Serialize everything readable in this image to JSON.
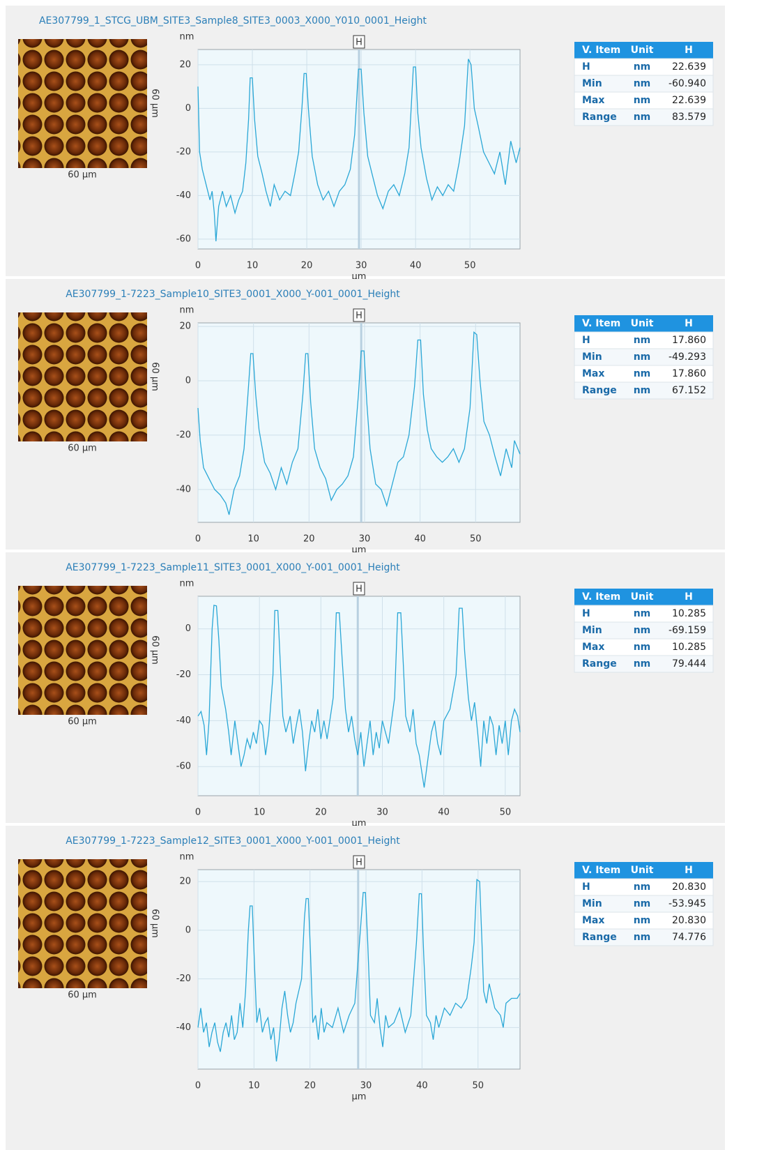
{
  "panels": [
    {
      "image": {
        "x_label": "60 µm",
        "y_label": "60 µm"
      },
      "chart_data": {
        "type": "line",
        "title": "AE307799_1_STCG_UBM_SITE3_Sample8_SITE3_0003_X000_Y010_0001_Height",
        "y_unit": "nm",
        "x_label": "µm",
        "marker_label": "H",
        "cursor_x": 29.6,
        "grid": true,
        "xlim": [
          0,
          59.2
        ],
        "ylim": [
          -64.5,
          27
        ],
        "xticks": [
          0,
          10,
          20,
          30,
          40,
          50
        ],
        "yticks": [
          -60,
          -40,
          -20,
          0,
          20
        ],
        "x": [
          0,
          0.3,
          0.8,
          1.5,
          2.2,
          2.6,
          3.0,
          3.3,
          3.8,
          4.5,
          5.2,
          6,
          6.8,
          7.5,
          8.2,
          8.8,
          9.3,
          9.6,
          10.0,
          10.4,
          11,
          11.8,
          12.5,
          13.3,
          14,
          15,
          16,
          17,
          17.8,
          18.5,
          19.1,
          19.5,
          19.9,
          20.3,
          21,
          22,
          23,
          24,
          25,
          26,
          27,
          28,
          28.8,
          29.5,
          30,
          30.5,
          31.2,
          32,
          33,
          34,
          35,
          36,
          37,
          38,
          38.8,
          39.6,
          40.0,
          40.4,
          41,
          42,
          43,
          44,
          45,
          46,
          47,
          48,
          49,
          49.7,
          50.2,
          50.8,
          51.5,
          52.5,
          53.5,
          54.5,
          55.5,
          56.5,
          57.5,
          58.5,
          59.2
        ],
        "series": [
          {
            "color": "#2aa7d6",
            "values": [
              10,
              -20,
              -28,
              -35,
              -42,
              -38,
              -48,
              -60.94,
              -45,
              -38,
              -45,
              -40,
              -48,
              -42,
              -38,
              -25,
              -5,
              14,
              14,
              -5,
              -22,
              -30,
              -38,
              -45,
              -35,
              -42,
              -38,
              -40,
              -30,
              -20,
              0,
              16,
              16,
              0,
              -22,
              -35,
              -42,
              -38,
              -45,
              -38,
              -35,
              -28,
              -12,
              18,
              18,
              -2,
              -22,
              -30,
              -40,
              -46,
              -38,
              -35,
              -40,
              -30,
              -18,
              19,
              19,
              -2,
              -18,
              -32,
              -42,
              -36,
              -40,
              -35,
              -38,
              -25,
              -8,
              22.639,
              20,
              0,
              -8,
              -20,
              -25,
              -30,
              -20,
              -35,
              -15,
              -25,
              -18
            ]
          }
        ]
      },
      "table": {
        "header": [
          "V. Item",
          "Unit",
          "H"
        ],
        "rows": [
          [
            "H",
            "nm",
            "22.639"
          ],
          [
            "Min",
            "nm",
            "-60.940"
          ],
          [
            "Max",
            "nm",
            "22.639"
          ],
          [
            "Range",
            "nm",
            "83.579"
          ]
        ]
      }
    },
    {
      "image": {
        "x_label": "60 µm",
        "y_label": "60 µm"
      },
      "chart_data": {
        "type": "line",
        "title": "AE307799_1-7223_Sample10_SITE3_0001_X000_Y-001_0001_Height",
        "y_unit": "nm",
        "x_label": "µm",
        "marker_label": "H",
        "cursor_x": 29.4,
        "grid": true,
        "xlim": [
          0,
          58.0
        ],
        "ylim": [
          -52.1,
          21.3
        ],
        "xticks": [
          0,
          10,
          20,
          30,
          40,
          50
        ],
        "yticks": [
          -40,
          -20,
          0,
          20
        ],
        "x": [
          0,
          0.4,
          1,
          2,
          3,
          4,
          5,
          5.6,
          6.5,
          7.5,
          8.3,
          9,
          9.5,
          9.9,
          10.4,
          11,
          12,
          13,
          14,
          15,
          16,
          17,
          18,
          18.9,
          19.4,
          19.8,
          20.3,
          21,
          22,
          23,
          24,
          25,
          26,
          27,
          28,
          28.9,
          29.4,
          29.9,
          30.4,
          31,
          32,
          33,
          34,
          35,
          36,
          37,
          38,
          39,
          39.6,
          40.1,
          40.6,
          41.3,
          42,
          43,
          44,
          45,
          46,
          47,
          48,
          49,
          49.7,
          50.2,
          50.8,
          51.5,
          52.5,
          53.5,
          54.5,
          55.5,
          56.5,
          57,
          58
        ],
        "series": [
          {
            "color": "#2aa7d6",
            "values": [
              -10,
              -22,
              -32,
              -36,
              -40,
              -42,
              -45,
              -49.293,
              -40,
              -35,
              -25,
              -5,
              10,
              10,
              -5,
              -18,
              -30,
              -34,
              -40,
              -32,
              -38,
              -30,
              -25,
              -5,
              10,
              10,
              -8,
              -25,
              -32,
              -36,
              -44,
              -40,
              -38,
              -35,
              -28,
              -5,
              11,
              11,
              -8,
              -25,
              -38,
              -40,
              -46,
              -38,
              -30,
              -28,
              -20,
              -2,
              15,
              15,
              -5,
              -18,
              -25,
              -28,
              -30,
              -28,
              -25,
              -30,
              -25,
              -10,
              17.86,
              17,
              0,
              -15,
              -20,
              -28,
              -35,
              -25,
              -32,
              -22,
              -27
            ]
          }
        ]
      },
      "table": {
        "header": [
          "V. Item",
          "Unit",
          "H"
        ],
        "rows": [
          [
            "H",
            "nm",
            "17.860"
          ],
          [
            "Min",
            "nm",
            "-49.293"
          ],
          [
            "Max",
            "nm",
            "17.860"
          ],
          [
            "Range",
            "nm",
            "67.152"
          ]
        ]
      }
    },
    {
      "image": {
        "x_label": "60 µm",
        "y_label": "60 µm"
      },
      "chart_data": {
        "type": "line",
        "title": "AE307799_1-7223_Sample11_SITE3_0001_X000_Y-001_0001_Height",
        "y_unit": "nm",
        "x_label": "µm",
        "marker_label": "H",
        "cursor_x": 26,
        "grid": true,
        "xlim": [
          0,
          52.4
        ],
        "ylim": [
          -72.7,
          14.2
        ],
        "xticks": [
          0,
          10,
          20,
          30,
          40,
          50
        ],
        "yticks": [
          -60,
          -40,
          -20,
          0
        ],
        "x": [
          0,
          0.5,
          1,
          1.4,
          1.8,
          2.3,
          2.6,
          3,
          3.4,
          3.8,
          4.5,
          5,
          5.4,
          6,
          6.5,
          7,
          7.5,
          8,
          8.5,
          9,
          9.5,
          10,
          10.5,
          11,
          11.5,
          12.2,
          12.5,
          13,
          13.4,
          13.8,
          14.3,
          15,
          15.5,
          16,
          16.5,
          17,
          17.5,
          18,
          18.5,
          19,
          19.5,
          20,
          20.5,
          21,
          22,
          22.5,
          23,
          23.5,
          24,
          24.5,
          25,
          25.5,
          26,
          26.5,
          27,
          27.5,
          28,
          28.5,
          29,
          29.5,
          30,
          31,
          32,
          32.5,
          33,
          33.4,
          33.8,
          34.5,
          35,
          35.5,
          36,
          36.8,
          37.5,
          38,
          38.5,
          39,
          39.5,
          40,
          41,
          42,
          42.5,
          43,
          43.4,
          44,
          44.5,
          45,
          45.5,
          46,
          46.5,
          47,
          47.5,
          48,
          48.5,
          49,
          49.5,
          50,
          50.5,
          51,
          51.5,
          52,
          52.4
        ],
        "series": [
          {
            "color": "#2aa7d6",
            "values": [
              -38,
              -36,
              -42,
              -55,
              -40,
              0,
              10.285,
              10,
              -5,
              -25,
              -35,
              -45,
              -55,
              -40,
              -50,
              -60,
              -55,
              -48,
              -52,
              -45,
              -50,
              -40,
              -42,
              -55,
              -45,
              -20,
              8,
              8,
              -15,
              -38,
              -45,
              -38,
              -50,
              -42,
              -35,
              -45,
              -62,
              -50,
              -40,
              -45,
              -35,
              -48,
              -40,
              -48,
              -30,
              7,
              7,
              -15,
              -35,
              -45,
              -38,
              -48,
              -55,
              -45,
              -60,
              -50,
              -40,
              -55,
              -45,
              -52,
              -40,
              -50,
              -30,
              7,
              7,
              -15,
              -38,
              -45,
              -35,
              -50,
              -55,
              -69.159,
              -55,
              -45,
              -40,
              -50,
              -55,
              -40,
              -35,
              -20,
              9,
              9,
              -10,
              -30,
              -40,
              -32,
              -45,
              -60,
              -40,
              -50,
              -38,
              -42,
              -55,
              -42,
              -50,
              -40,
              -55,
              -40,
              -35,
              -38,
              -45
            ]
          }
        ]
      },
      "table": {
        "header": [
          "V. Item",
          "Unit",
          "H"
        ],
        "rows": [
          [
            "H",
            "nm",
            "10.285"
          ],
          [
            "Min",
            "nm",
            "-69.159"
          ],
          [
            "Max",
            "nm",
            "10.285"
          ],
          [
            "Range",
            "nm",
            "79.444"
          ]
        ]
      }
    },
    {
      "image": {
        "x_label": "60 µm",
        "y_label": "60 µm"
      },
      "chart_data": {
        "type": "line",
        "title": "AE307799_1-7223_Sample12_SITE3_0001_X000_Y-001_0001_Height",
        "y_unit": "nm",
        "x_label": "µm",
        "marker_label": "H",
        "cursor_x": 28.6,
        "grid": true,
        "xlim": [
          0,
          57.5
        ],
        "ylim": [
          -57.1,
          24.9
        ],
        "xticks": [
          0,
          10,
          20,
          30,
          40,
          50
        ],
        "yticks": [
          -40,
          -20,
          0,
          20
        ],
        "x": [
          0,
          0.5,
          1,
          1.5,
          2,
          2.5,
          3,
          3.5,
          4,
          4.5,
          5,
          5.5,
          6,
          6.5,
          7,
          7.5,
          8,
          8.5,
          9,
          9.3,
          9.7,
          10.1,
          10.5,
          11,
          11.5,
          12,
          12.5,
          13,
          13.5,
          14,
          14.5,
          15,
          15.5,
          16,
          16.5,
          17,
          17.5,
          18,
          18.5,
          19,
          19.3,
          19.7,
          20.1,
          20.5,
          21,
          21.5,
          22,
          22.5,
          23,
          24,
          25,
          26,
          27,
          28,
          29,
          29.5,
          29.9,
          30.3,
          30.8,
          31.5,
          32,
          32.5,
          33,
          33.5,
          34,
          35,
          36,
          37,
          38,
          39,
          39.5,
          39.9,
          40.3,
          40.8,
          41.5,
          42,
          42.5,
          43,
          44,
          45,
          46,
          47,
          48,
          48.8,
          49.3,
          49.8,
          50.3,
          50.7,
          51,
          51.5,
          52,
          53,
          54,
          54.5,
          55,
          56,
          57,
          57.5
        ],
        "series": [
          {
            "color": "#2aa7d6",
            "values": [
              -40,
              -32,
              -42,
              -38,
              -48,
              -42,
              -38,
              -46,
              -50,
              -42,
              -38,
              -44,
              -35,
              -45,
              -42,
              -30,
              -40,
              -25,
              0,
              10,
              10,
              -15,
              -38,
              -32,
              -42,
              -38,
              -36,
              -45,
              -40,
              -53.945,
              -45,
              -32,
              -25,
              -35,
              -42,
              -38,
              -30,
              -25,
              -20,
              5,
              13,
              13,
              -10,
              -38,
              -35,
              -45,
              -32,
              -42,
              -38,
              -40,
              -32,
              -42,
              -35,
              -30,
              0,
              15.5,
              15.5,
              -5,
              -35,
              -38,
              -28,
              -40,
              -48,
              -35,
              -40,
              -38,
              -32,
              -42,
              -35,
              -5,
              15,
              15,
              -10,
              -35,
              -38,
              -45,
              -35,
              -40,
              -32,
              -35,
              -30,
              -32,
              -28,
              -15,
              -5,
              20.83,
              20,
              -5,
              -25,
              -30,
              -22,
              -32,
              -35,
              -40,
              -30,
              -28,
              -28,
              -26
            ]
          }
        ]
      },
      "table": {
        "header": [
          "V. Item",
          "Unit",
          "H"
        ],
        "rows": [
          [
            "H",
            "nm",
            "20.830"
          ],
          [
            "Min",
            "nm",
            "-53.945"
          ],
          [
            "Max",
            "nm",
            "20.830"
          ],
          [
            "Range",
            "nm",
            "74.776"
          ]
        ]
      }
    }
  ]
}
